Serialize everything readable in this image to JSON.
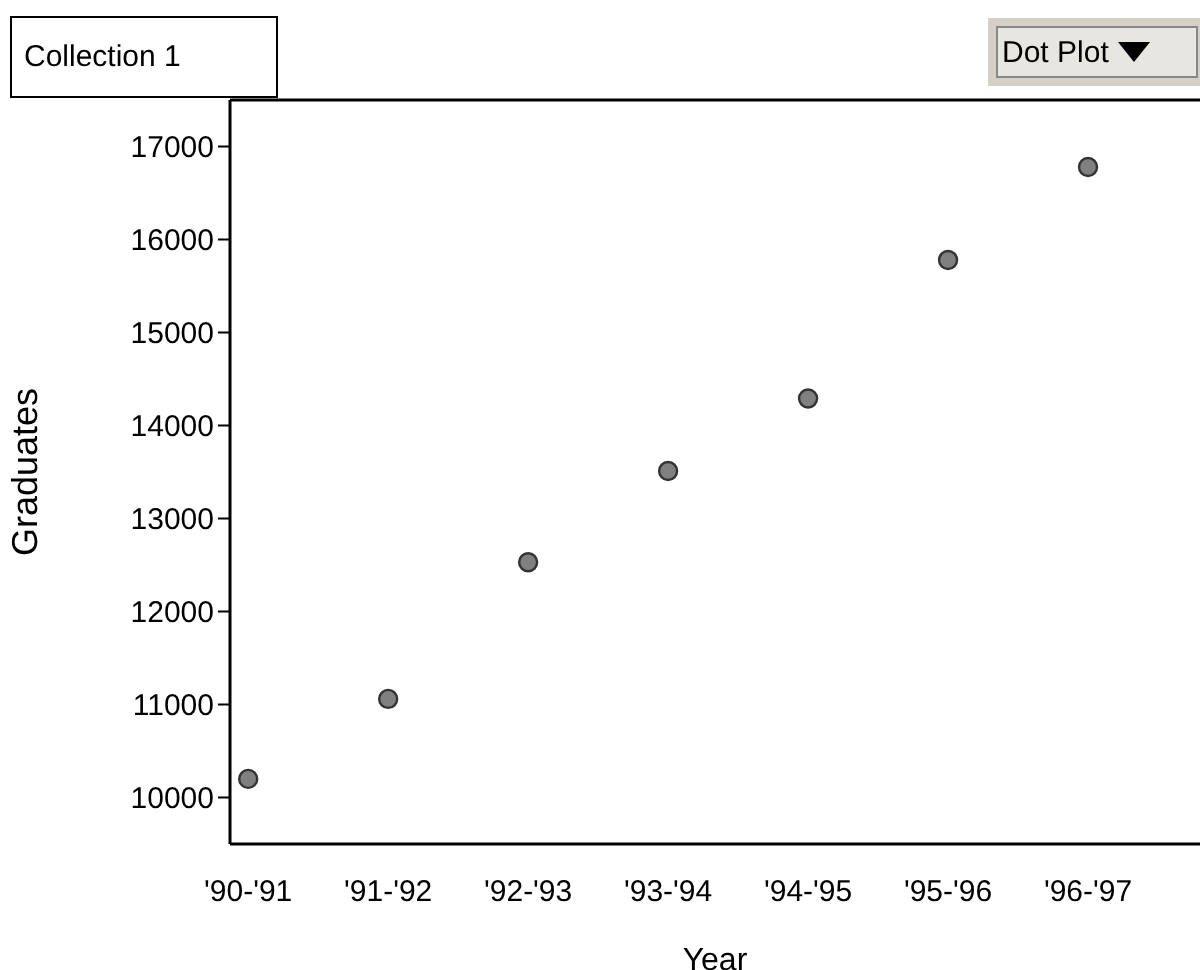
{
  "chart_data": {
    "type": "scatter",
    "title": "Collection 1",
    "annotations": [
      "Dot Plot"
    ],
    "xlabel": "Year",
    "ylabel": "Graduates",
    "categories": [
      "'90-'91",
      "'91-'92",
      "'92-'93",
      "'93-'94",
      "'94-'95",
      "'95-'96",
      "'96-'97"
    ],
    "series": [
      {
        "color": "#808080",
        "values": [
          10200,
          11060,
          12530,
          13510,
          14290,
          15780,
          16780
        ]
      }
    ],
    "ylim": [
      9500,
      17500
    ],
    "yticks": [
      10000,
      11000,
      12000,
      13000,
      14000,
      15000,
      16000,
      17000
    ],
    "marker": "circle",
    "grid": false,
    "legend": false
  }
}
